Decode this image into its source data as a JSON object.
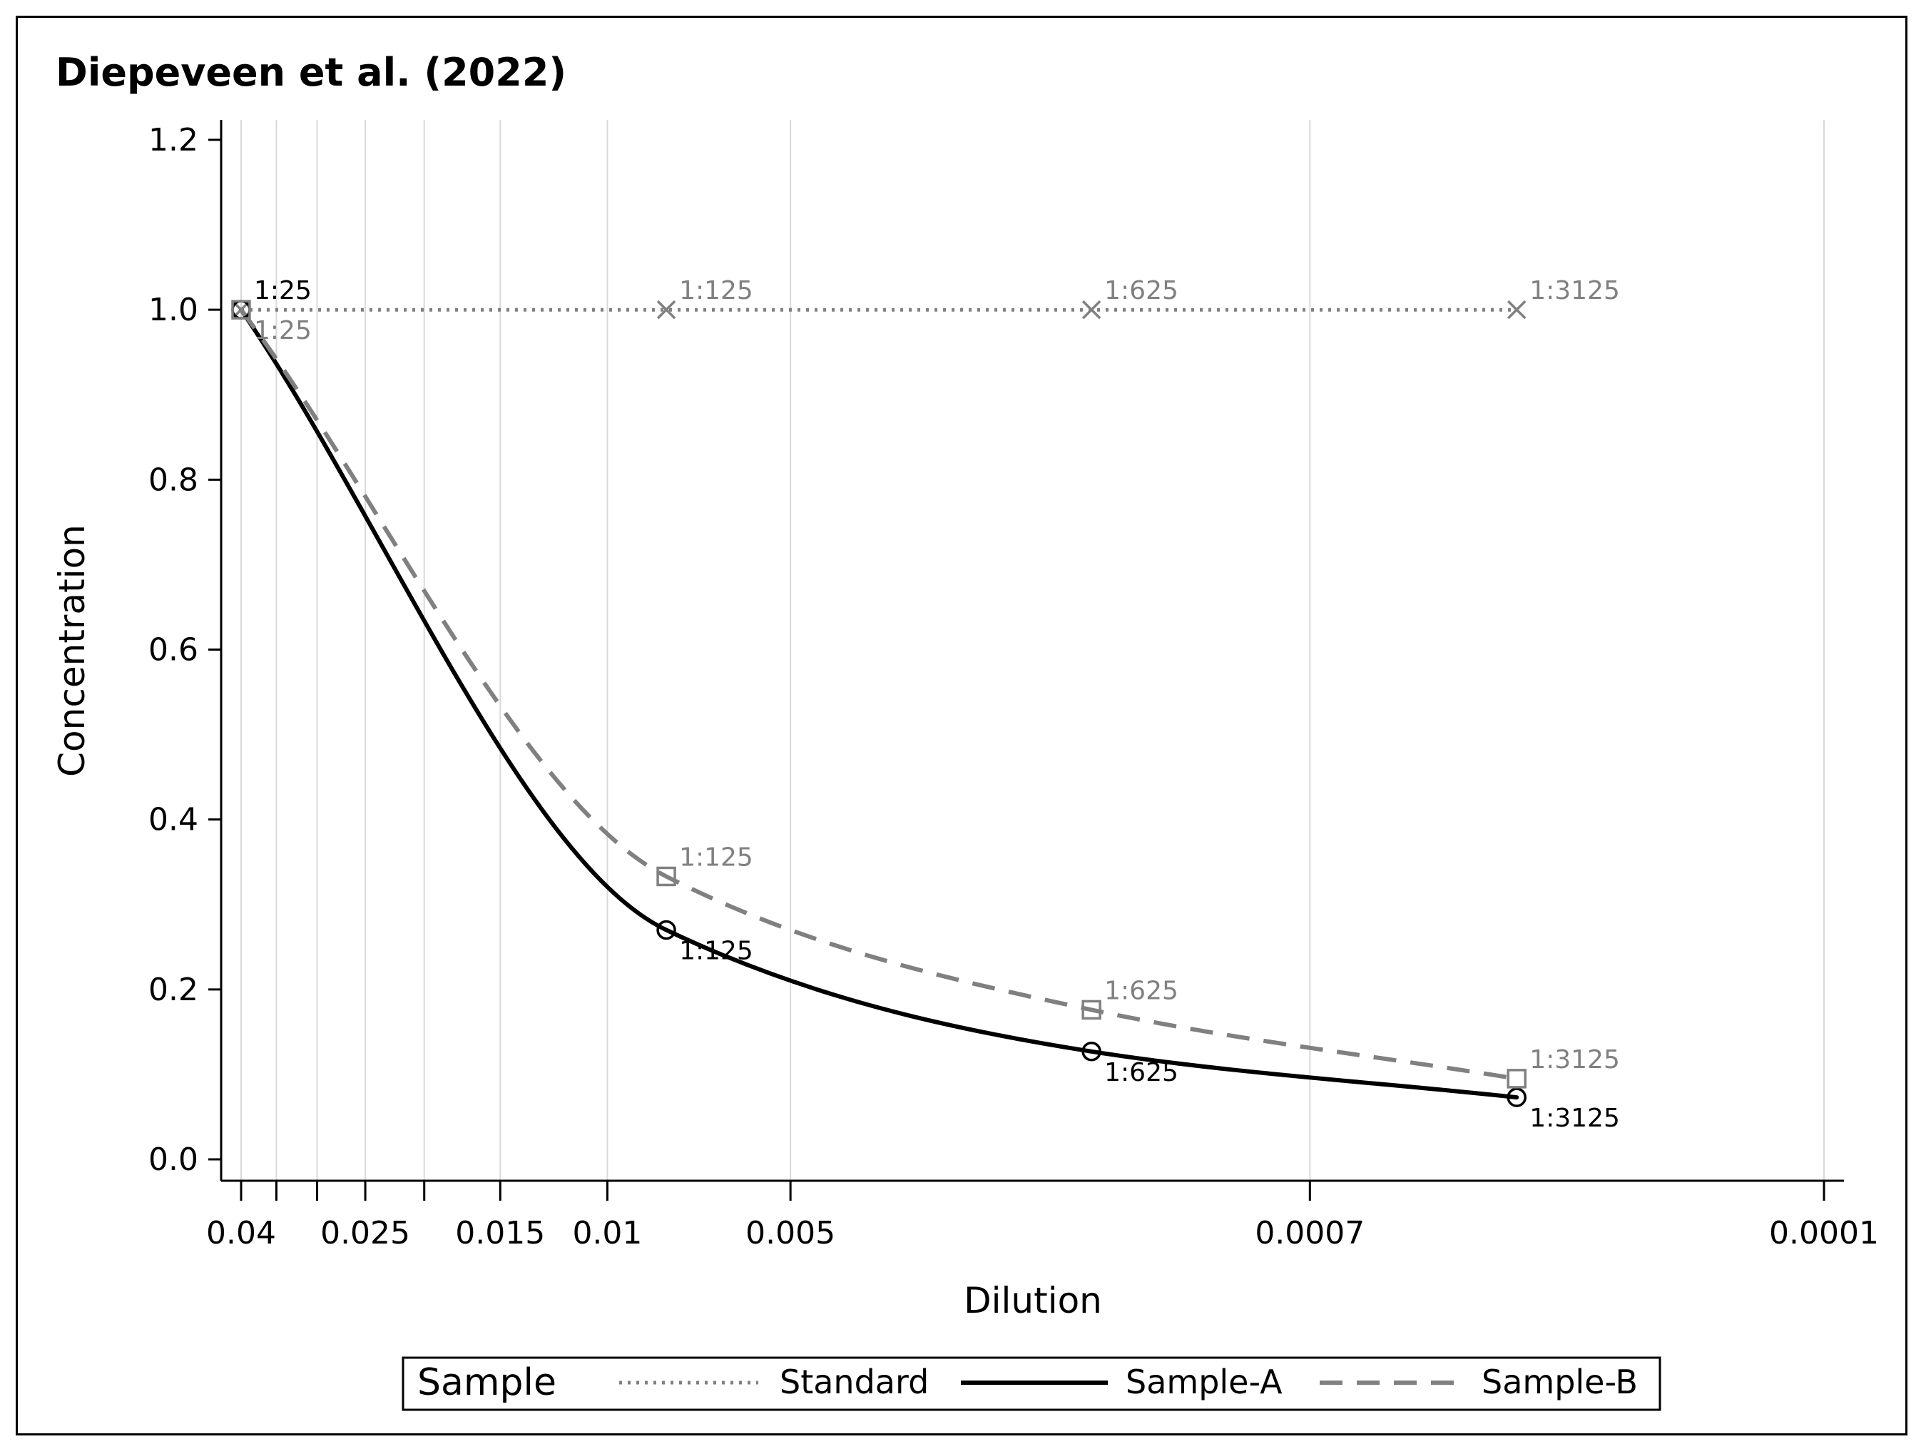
{
  "chart_data": {
    "type": "line",
    "title": "Diepeveen et al. (2022)",
    "xlabel": "Dilution",
    "ylabel": "Concentration",
    "x_scale": "log-reversed",
    "xlim": [
      0.04,
      0.0001
    ],
    "ylim": [
      0.0,
      1.2
    ],
    "x_tick_labels": [
      {
        "value": 0.04,
        "label": "0.04"
      },
      {
        "value": 0.025,
        "label": "0.025"
      },
      {
        "value": 0.015,
        "label": "0.015"
      },
      {
        "value": 0.01,
        "label": "0.01"
      },
      {
        "value": 0.005,
        "label": "0.005"
      },
      {
        "value": 0.0007,
        "label": "0.0007"
      },
      {
        "value": 0.0001,
        "label": "0.0001"
      }
    ],
    "x_gridlines": [
      0.04,
      0.035,
      0.03,
      0.025,
      0.02,
      0.015,
      0.01,
      0.005,
      0.0007,
      0.0001
    ],
    "y_ticks": [
      {
        "value": 0.0,
        "label": "0.0"
      },
      {
        "value": 0.2,
        "label": "0.2"
      },
      {
        "value": 0.4,
        "label": "0.4"
      },
      {
        "value": 0.6,
        "label": "0.6"
      },
      {
        "value": 0.8,
        "label": "0.8"
      },
      {
        "value": 1.0,
        "label": "1.0"
      },
      {
        "value": 1.2,
        "label": "1.2"
      }
    ],
    "series": [
      {
        "name": "Standard",
        "style": "dotted",
        "color": "#808080",
        "marker": "x",
        "points": [
          {
            "x": 0.04,
            "y": 1.0,
            "label": "1:25"
          },
          {
            "x": 0.008,
            "y": 1.0,
            "label": "1:125"
          },
          {
            "x": 0.0016,
            "y": 1.0,
            "label": "1:625"
          },
          {
            "x": 0.00032,
            "y": 1.0,
            "label": "1:3125"
          }
        ]
      },
      {
        "name": "Sample-A",
        "style": "solid",
        "color": "#000000",
        "marker": "circle",
        "points": [
          {
            "x": 0.04,
            "y": 1.0,
            "label": "1:25"
          },
          {
            "x": 0.008,
            "y": 0.27,
            "label": "1:125"
          },
          {
            "x": 0.0016,
            "y": 0.127,
            "label": "1:625"
          },
          {
            "x": 0.00032,
            "y": 0.073,
            "label": "1:3125"
          }
        ]
      },
      {
        "name": "Sample-B",
        "style": "dashed",
        "color": "#808080",
        "marker": "square",
        "points": [
          {
            "x": 0.04,
            "y": 1.0,
            "label": "1:25"
          },
          {
            "x": 0.008,
            "y": 0.333,
            "label": "1:125"
          },
          {
            "x": 0.0016,
            "y": 0.176,
            "label": "1:625"
          },
          {
            "x": 0.00032,
            "y": 0.095,
            "label": "1:3125"
          }
        ]
      }
    ],
    "legend": {
      "title": "Sample",
      "placement": "bottom",
      "entries": [
        "Standard",
        "Sample-A",
        "Sample-B"
      ]
    }
  }
}
